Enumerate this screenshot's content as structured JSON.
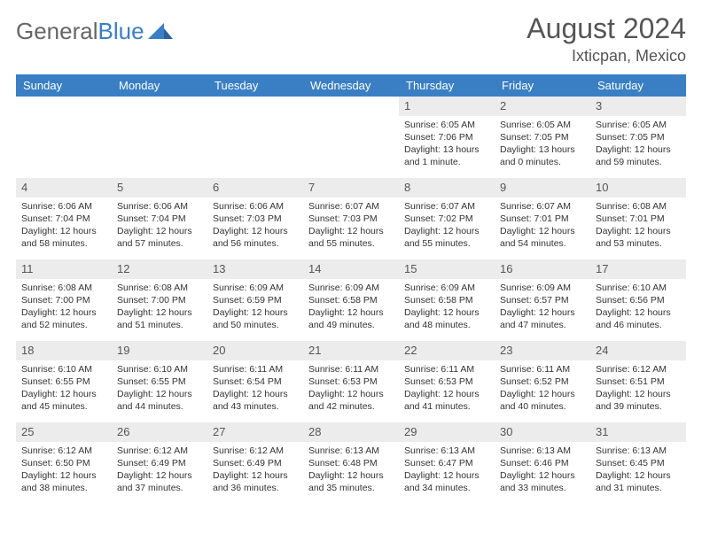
{
  "logo": {
    "general": "General",
    "blue": "Blue"
  },
  "title": "August 2024",
  "location": "Ixticpan, Mexico",
  "colors": {
    "header_bg": "#3a7fc4",
    "header_text": "#ffffff",
    "daynum_bg": "#ececec",
    "rule": "#3a7fc4",
    "text": "#333333",
    "title_text": "#555555"
  },
  "day_headers": [
    "Sunday",
    "Monday",
    "Tuesday",
    "Wednesday",
    "Thursday",
    "Friday",
    "Saturday"
  ],
  "weeks": [
    [
      {
        "blank": true
      },
      {
        "blank": true
      },
      {
        "blank": true
      },
      {
        "blank": true
      },
      {
        "n": "1",
        "sunrise": "Sunrise: 6:05 AM",
        "sunset": "Sunset: 7:06 PM",
        "daylight": "Daylight: 13 hours and 1 minute."
      },
      {
        "n": "2",
        "sunrise": "Sunrise: 6:05 AM",
        "sunset": "Sunset: 7:05 PM",
        "daylight": "Daylight: 13 hours and 0 minutes."
      },
      {
        "n": "3",
        "sunrise": "Sunrise: 6:05 AM",
        "sunset": "Sunset: 7:05 PM",
        "daylight": "Daylight: 12 hours and 59 minutes."
      }
    ],
    [
      {
        "n": "4",
        "sunrise": "Sunrise: 6:06 AM",
        "sunset": "Sunset: 7:04 PM",
        "daylight": "Daylight: 12 hours and 58 minutes."
      },
      {
        "n": "5",
        "sunrise": "Sunrise: 6:06 AM",
        "sunset": "Sunset: 7:04 PM",
        "daylight": "Daylight: 12 hours and 57 minutes."
      },
      {
        "n": "6",
        "sunrise": "Sunrise: 6:06 AM",
        "sunset": "Sunset: 7:03 PM",
        "daylight": "Daylight: 12 hours and 56 minutes."
      },
      {
        "n": "7",
        "sunrise": "Sunrise: 6:07 AM",
        "sunset": "Sunset: 7:03 PM",
        "daylight": "Daylight: 12 hours and 55 minutes."
      },
      {
        "n": "8",
        "sunrise": "Sunrise: 6:07 AM",
        "sunset": "Sunset: 7:02 PM",
        "daylight": "Daylight: 12 hours and 55 minutes."
      },
      {
        "n": "9",
        "sunrise": "Sunrise: 6:07 AM",
        "sunset": "Sunset: 7:01 PM",
        "daylight": "Daylight: 12 hours and 54 minutes."
      },
      {
        "n": "10",
        "sunrise": "Sunrise: 6:08 AM",
        "sunset": "Sunset: 7:01 PM",
        "daylight": "Daylight: 12 hours and 53 minutes."
      }
    ],
    [
      {
        "n": "11",
        "sunrise": "Sunrise: 6:08 AM",
        "sunset": "Sunset: 7:00 PM",
        "daylight": "Daylight: 12 hours and 52 minutes."
      },
      {
        "n": "12",
        "sunrise": "Sunrise: 6:08 AM",
        "sunset": "Sunset: 7:00 PM",
        "daylight": "Daylight: 12 hours and 51 minutes."
      },
      {
        "n": "13",
        "sunrise": "Sunrise: 6:09 AM",
        "sunset": "Sunset: 6:59 PM",
        "daylight": "Daylight: 12 hours and 50 minutes."
      },
      {
        "n": "14",
        "sunrise": "Sunrise: 6:09 AM",
        "sunset": "Sunset: 6:58 PM",
        "daylight": "Daylight: 12 hours and 49 minutes."
      },
      {
        "n": "15",
        "sunrise": "Sunrise: 6:09 AM",
        "sunset": "Sunset: 6:58 PM",
        "daylight": "Daylight: 12 hours and 48 minutes."
      },
      {
        "n": "16",
        "sunrise": "Sunrise: 6:09 AM",
        "sunset": "Sunset: 6:57 PM",
        "daylight": "Daylight: 12 hours and 47 minutes."
      },
      {
        "n": "17",
        "sunrise": "Sunrise: 6:10 AM",
        "sunset": "Sunset: 6:56 PM",
        "daylight": "Daylight: 12 hours and 46 minutes."
      }
    ],
    [
      {
        "n": "18",
        "sunrise": "Sunrise: 6:10 AM",
        "sunset": "Sunset: 6:55 PM",
        "daylight": "Daylight: 12 hours and 45 minutes."
      },
      {
        "n": "19",
        "sunrise": "Sunrise: 6:10 AM",
        "sunset": "Sunset: 6:55 PM",
        "daylight": "Daylight: 12 hours and 44 minutes."
      },
      {
        "n": "20",
        "sunrise": "Sunrise: 6:11 AM",
        "sunset": "Sunset: 6:54 PM",
        "daylight": "Daylight: 12 hours and 43 minutes."
      },
      {
        "n": "21",
        "sunrise": "Sunrise: 6:11 AM",
        "sunset": "Sunset: 6:53 PM",
        "daylight": "Daylight: 12 hours and 42 minutes."
      },
      {
        "n": "22",
        "sunrise": "Sunrise: 6:11 AM",
        "sunset": "Sunset: 6:53 PM",
        "daylight": "Daylight: 12 hours and 41 minutes."
      },
      {
        "n": "23",
        "sunrise": "Sunrise: 6:11 AM",
        "sunset": "Sunset: 6:52 PM",
        "daylight": "Daylight: 12 hours and 40 minutes."
      },
      {
        "n": "24",
        "sunrise": "Sunrise: 6:12 AM",
        "sunset": "Sunset: 6:51 PM",
        "daylight": "Daylight: 12 hours and 39 minutes."
      }
    ],
    [
      {
        "n": "25",
        "sunrise": "Sunrise: 6:12 AM",
        "sunset": "Sunset: 6:50 PM",
        "daylight": "Daylight: 12 hours and 38 minutes."
      },
      {
        "n": "26",
        "sunrise": "Sunrise: 6:12 AM",
        "sunset": "Sunset: 6:49 PM",
        "daylight": "Daylight: 12 hours and 37 minutes."
      },
      {
        "n": "27",
        "sunrise": "Sunrise: 6:12 AM",
        "sunset": "Sunset: 6:49 PM",
        "daylight": "Daylight: 12 hours and 36 minutes."
      },
      {
        "n": "28",
        "sunrise": "Sunrise: 6:13 AM",
        "sunset": "Sunset: 6:48 PM",
        "daylight": "Daylight: 12 hours and 35 minutes."
      },
      {
        "n": "29",
        "sunrise": "Sunrise: 6:13 AM",
        "sunset": "Sunset: 6:47 PM",
        "daylight": "Daylight: 12 hours and 34 minutes."
      },
      {
        "n": "30",
        "sunrise": "Sunrise: 6:13 AM",
        "sunset": "Sunset: 6:46 PM",
        "daylight": "Daylight: 12 hours and 33 minutes."
      },
      {
        "n": "31",
        "sunrise": "Sunrise: 6:13 AM",
        "sunset": "Sunset: 6:45 PM",
        "daylight": "Daylight: 12 hours and 31 minutes."
      }
    ]
  ]
}
